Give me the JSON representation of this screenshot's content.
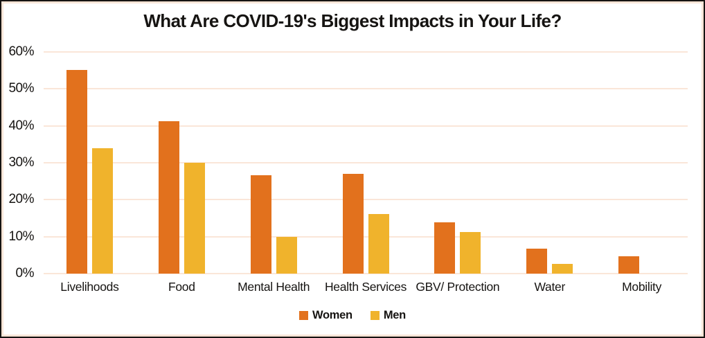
{
  "chart": {
    "title": "What Are COVID-19's Biggest Impacts in Your Life?"
  },
  "chart_data": {
    "type": "bar",
    "title": "What Are COVID-19's Biggest Impacts in Your Life?",
    "xlabel": "",
    "ylabel": "",
    "categories": [
      "Livelihoods",
      "Food",
      "Mental Health",
      "Health Services",
      "GBV/ Protection",
      "Water",
      "Mobility"
    ],
    "series": [
      {
        "name": "Women",
        "color": "#e2711d",
        "values": [
          55.2,
          41.3,
          26.6,
          27.0,
          13.9,
          6.8,
          4.6
        ]
      },
      {
        "name": "Men",
        "color": "#f0b32c",
        "values": [
          33.9,
          30.0,
          10.0,
          16.1,
          11.3,
          2.7,
          0
        ]
      }
    ],
    "ylim": [
      0,
      60
    ],
    "y_ticks": [
      "60%",
      "50%",
      "40%",
      "30%",
      "20%",
      "10%",
      "0%"
    ],
    "grid": "horizontal",
    "legend_position": "bottom",
    "colors": {
      "grid": "#fae6d8",
      "inner_border": "#fae6d8",
      "frame_border": "#161412",
      "text": "#161412",
      "background": "#ffffff"
    }
  }
}
